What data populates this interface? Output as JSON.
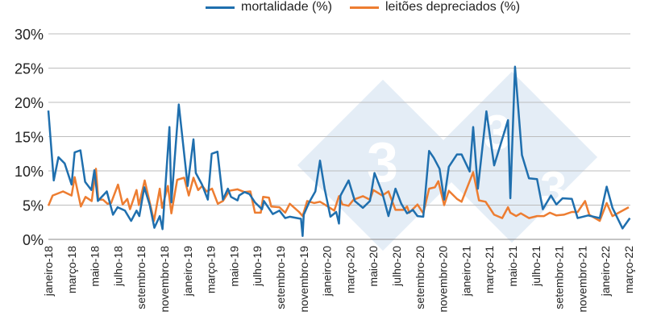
{
  "chart_data": {
    "type": "line",
    "title": "",
    "xlabel": "",
    "ylabel": "",
    "ylim": [
      0,
      30
    ],
    "y_ticks": [
      "0%",
      "5%",
      "10%",
      "15%",
      "20%",
      "25%",
      "30%"
    ],
    "x_range": [
      "2018-01-01",
      "2022-03-01"
    ],
    "x_ticks": [
      {
        "date": "2018-01-01",
        "label": "janeiro-18"
      },
      {
        "date": "2018-03-01",
        "label": "março-18"
      },
      {
        "date": "2018-05-01",
        "label": "maio-18"
      },
      {
        "date": "2018-07-01",
        "label": "julho-18"
      },
      {
        "date": "2018-09-01",
        "label": "setembro-18"
      },
      {
        "date": "2018-11-01",
        "label": "novembro-18"
      },
      {
        "date": "2019-01-01",
        "label": "janeiro-19"
      },
      {
        "date": "2019-03-01",
        "label": "março-19"
      },
      {
        "date": "2019-05-01",
        "label": "maio-19"
      },
      {
        "date": "2019-07-01",
        "label": "julho-19"
      },
      {
        "date": "2019-09-01",
        "label": "setembro-19"
      },
      {
        "date": "2019-11-01",
        "label": "novembro-19"
      },
      {
        "date": "2020-01-01",
        "label": "janeiro-20"
      },
      {
        "date": "2020-03-01",
        "label": "março-20"
      },
      {
        "date": "2020-05-01",
        "label": "maio-20"
      },
      {
        "date": "2020-07-01",
        "label": "julho-20"
      },
      {
        "date": "2020-09-01",
        "label": "setembro-20"
      },
      {
        "date": "2020-11-01",
        "label": "novembro-20"
      },
      {
        "date": "2021-01-01",
        "label": "janeiro-21"
      },
      {
        "date": "2021-03-01",
        "label": "março-21"
      },
      {
        "date": "2021-05-01",
        "label": "maio-21"
      },
      {
        "date": "2021-07-01",
        "label": "julho-21"
      },
      {
        "date": "2021-09-01",
        "label": "setembro-21"
      },
      {
        "date": "2021-11-01",
        "label": "novembro-21"
      },
      {
        "date": "2022-01-01",
        "label": "janeiro-22"
      },
      {
        "date": "2022-03-01",
        "label": "março-22"
      }
    ],
    "grid": "horizontal",
    "legend_position": "top",
    "series": [
      {
        "name": "mortalidade (%)",
        "color": "#1f6fae",
        "points": [
          [
            "2018-01-01",
            18.8
          ],
          [
            "2018-01-15",
            8.6
          ],
          [
            "2018-01-27",
            12.0
          ],
          [
            "2018-02-13",
            11.1
          ],
          [
            "2018-03-01",
            8.0
          ],
          [
            "2018-03-09",
            12.7
          ],
          [
            "2018-03-24",
            13.0
          ],
          [
            "2018-04-06",
            8.4
          ],
          [
            "2018-04-22",
            7.2
          ],
          [
            "2018-04-30",
            10.1
          ],
          [
            "2018-05-09",
            5.6
          ],
          [
            "2018-06-02",
            7.0
          ],
          [
            "2018-06-18",
            3.6
          ],
          [
            "2018-06-30",
            4.7
          ],
          [
            "2018-07-19",
            4.2
          ],
          [
            "2018-08-05",
            2.7
          ],
          [
            "2018-08-19",
            4.2
          ],
          [
            "2018-08-26",
            3.4
          ],
          [
            "2018-09-09",
            7.6
          ],
          [
            "2018-09-23",
            5.0
          ],
          [
            "2018-10-05",
            1.7
          ],
          [
            "2018-10-19",
            3.4
          ],
          [
            "2018-10-26",
            1.5
          ],
          [
            "2018-11-14",
            16.4
          ],
          [
            "2018-11-19",
            5.4
          ],
          [
            "2018-12-08",
            19.7
          ],
          [
            "2019-01-01",
            7.8
          ],
          [
            "2019-01-16",
            14.6
          ],
          [
            "2019-01-22",
            9.7
          ],
          [
            "2019-02-08",
            8.0
          ],
          [
            "2019-02-23",
            5.8
          ],
          [
            "2019-03-03",
            12.5
          ],
          [
            "2019-03-18",
            12.8
          ],
          [
            "2019-04-02",
            5.8
          ],
          [
            "2019-04-15",
            7.4
          ],
          [
            "2019-04-23",
            6.2
          ],
          [
            "2019-05-10",
            5.7
          ],
          [
            "2019-05-14",
            6.4
          ],
          [
            "2019-05-28",
            6.9
          ],
          [
            "2019-06-11",
            6.6
          ],
          [
            "2019-06-25",
            5.4
          ],
          [
            "2019-07-13",
            4.4
          ],
          [
            "2019-07-18",
            5.6
          ],
          [
            "2019-08-11",
            3.7
          ],
          [
            "2019-08-28",
            4.2
          ],
          [
            "2019-09-13",
            3.1
          ],
          [
            "2019-09-25",
            3.3
          ],
          [
            "2019-10-24",
            3.0
          ],
          [
            "2019-10-28",
            0.5
          ],
          [
            "2019-11-01",
            3.6
          ],
          [
            "2019-11-15",
            5.4
          ],
          [
            "2019-12-01",
            7.0
          ],
          [
            "2019-12-13",
            11.5
          ],
          [
            "2019-12-25",
            7.4
          ],
          [
            "2020-01-10",
            3.3
          ],
          [
            "2020-01-25",
            4.0
          ],
          [
            "2020-02-02",
            2.3
          ],
          [
            "2020-02-06",
            6.4
          ],
          [
            "2020-02-27",
            8.6
          ],
          [
            "2020-03-13",
            5.6
          ],
          [
            "2020-04-04",
            4.6
          ],
          [
            "2020-04-22",
            5.6
          ],
          [
            "2020-05-04",
            9.7
          ],
          [
            "2020-05-24",
            6.8
          ],
          [
            "2020-06-10",
            3.4
          ],
          [
            "2020-06-28",
            7.4
          ],
          [
            "2020-07-13",
            5.2
          ],
          [
            "2020-07-28",
            3.8
          ],
          [
            "2020-08-13",
            4.3
          ],
          [
            "2020-08-25",
            3.4
          ],
          [
            "2020-09-10",
            3.3
          ],
          [
            "2020-09-25",
            12.9
          ],
          [
            "2020-10-07",
            11.9
          ],
          [
            "2020-10-22",
            10.3
          ],
          [
            "2020-11-04",
            5.8
          ],
          [
            "2020-11-16",
            10.6
          ],
          [
            "2020-12-07",
            12.4
          ],
          [
            "2020-12-19",
            12.4
          ],
          [
            "2021-01-10",
            9.9
          ],
          [
            "2021-01-19",
            16.4
          ],
          [
            "2021-02-01",
            7.4
          ],
          [
            "2021-02-23",
            18.7
          ],
          [
            "2021-03-13",
            10.8
          ],
          [
            "2021-04-19",
            17.4
          ],
          [
            "2021-04-25",
            6.0
          ],
          [
            "2021-05-07",
            25.2
          ],
          [
            "2021-05-25",
            12.3
          ],
          [
            "2021-06-13",
            8.9
          ],
          [
            "2021-07-04",
            8.8
          ],
          [
            "2021-07-19",
            4.4
          ],
          [
            "2021-08-10",
            6.4
          ],
          [
            "2021-08-24",
            5.1
          ],
          [
            "2021-09-10",
            6.0
          ],
          [
            "2021-10-04",
            5.9
          ],
          [
            "2021-10-19",
            3.1
          ],
          [
            "2021-11-16",
            3.5
          ],
          [
            "2021-12-16",
            3.1
          ],
          [
            "2022-01-04",
            7.7
          ],
          [
            "2022-01-19",
            4.6
          ],
          [
            "2022-02-15",
            1.6
          ],
          [
            "2022-03-04",
            3.1
          ]
        ]
      },
      {
        "name": "leitões depreciados (%)",
        "color": "#ed7d31",
        "points": [
          [
            "2018-01-01",
            4.9
          ],
          [
            "2018-01-12",
            6.4
          ],
          [
            "2018-02-09",
            7.0
          ],
          [
            "2018-03-01",
            6.4
          ],
          [
            "2018-03-09",
            9.1
          ],
          [
            "2018-03-25",
            4.8
          ],
          [
            "2018-04-07",
            6.2
          ],
          [
            "2018-04-23",
            5.6
          ],
          [
            "2018-05-04",
            10.3
          ],
          [
            "2018-05-10",
            5.8
          ],
          [
            "2018-05-22",
            5.8
          ],
          [
            "2018-06-04",
            5.2
          ],
          [
            "2018-06-13",
            5.3
          ],
          [
            "2018-07-01",
            8.0
          ],
          [
            "2018-07-13",
            5.1
          ],
          [
            "2018-07-25",
            5.9
          ],
          [
            "2018-08-02",
            4.4
          ],
          [
            "2018-08-19",
            7.2
          ],
          [
            "2018-08-25",
            5.0
          ],
          [
            "2018-09-10",
            8.6
          ],
          [
            "2018-10-04",
            2.7
          ],
          [
            "2018-10-19",
            7.4
          ],
          [
            "2018-10-25",
            4.6
          ],
          [
            "2018-11-10",
            7.8
          ],
          [
            "2018-11-19",
            3.8
          ],
          [
            "2018-12-04",
            8.7
          ],
          [
            "2018-12-22",
            9.0
          ],
          [
            "2019-01-04",
            6.4
          ],
          [
            "2019-01-16",
            9.0
          ],
          [
            "2019-01-28",
            7.2
          ],
          [
            "2019-02-09",
            7.8
          ],
          [
            "2019-02-20",
            7.0
          ],
          [
            "2019-03-04",
            7.4
          ],
          [
            "2019-03-19",
            5.2
          ],
          [
            "2019-04-02",
            5.6
          ],
          [
            "2019-04-19",
            7.1
          ],
          [
            "2019-05-10",
            7.3
          ],
          [
            "2019-05-28",
            6.9
          ],
          [
            "2019-06-13",
            7.0
          ],
          [
            "2019-06-25",
            3.9
          ],
          [
            "2019-07-10",
            3.9
          ],
          [
            "2019-07-16",
            6.2
          ],
          [
            "2019-08-01",
            6.1
          ],
          [
            "2019-08-07",
            4.8
          ],
          [
            "2019-08-28",
            4.7
          ],
          [
            "2019-09-13",
            3.9
          ],
          [
            "2019-09-25",
            5.2
          ],
          [
            "2019-10-19",
            4.0
          ],
          [
            "2019-10-28",
            3.4
          ],
          [
            "2019-11-10",
            5.6
          ],
          [
            "2019-11-28",
            5.3
          ],
          [
            "2019-12-13",
            5.5
          ],
          [
            "2019-12-19",
            5.3
          ],
          [
            "2020-01-20",
            4.2
          ],
          [
            "2020-02-02",
            6.3
          ],
          [
            "2020-02-11",
            5.1
          ],
          [
            "2020-02-27",
            4.9
          ],
          [
            "2020-03-10",
            5.8
          ],
          [
            "2020-04-04",
            6.3
          ],
          [
            "2020-04-22",
            5.8
          ],
          [
            "2020-05-01",
            7.2
          ],
          [
            "2020-05-24",
            6.4
          ],
          [
            "2020-06-10",
            7.0
          ],
          [
            "2020-06-28",
            4.3
          ],
          [
            "2020-07-19",
            4.3
          ],
          [
            "2020-07-28",
            4.8
          ],
          [
            "2020-08-04",
            3.9
          ],
          [
            "2020-08-25",
            5.1
          ],
          [
            "2020-09-10",
            3.8
          ],
          [
            "2020-09-25",
            7.4
          ],
          [
            "2020-10-10",
            7.6
          ],
          [
            "2020-10-19",
            8.5
          ],
          [
            "2020-11-04",
            5.0
          ],
          [
            "2020-11-16",
            7.1
          ],
          [
            "2020-12-07",
            5.9
          ],
          [
            "2020-12-19",
            5.5
          ],
          [
            "2021-01-19",
            9.8
          ],
          [
            "2021-02-04",
            5.7
          ],
          [
            "2021-02-21",
            5.5
          ],
          [
            "2021-03-13",
            3.6
          ],
          [
            "2021-04-04",
            3.1
          ],
          [
            "2021-04-19",
            4.7
          ],
          [
            "2021-04-25",
            3.9
          ],
          [
            "2021-05-10",
            3.4
          ],
          [
            "2021-05-22",
            3.8
          ],
          [
            "2021-06-13",
            3.1
          ],
          [
            "2021-07-04",
            3.4
          ],
          [
            "2021-07-22",
            3.4
          ],
          [
            "2021-08-07",
            3.9
          ],
          [
            "2021-08-24",
            3.5
          ],
          [
            "2021-09-13",
            3.6
          ],
          [
            "2021-10-04",
            4.0
          ],
          [
            "2021-10-19",
            4.0
          ],
          [
            "2021-11-08",
            5.6
          ],
          [
            "2021-11-19",
            3.6
          ],
          [
            "2021-12-16",
            2.7
          ],
          [
            "2022-01-04",
            5.3
          ],
          [
            "2022-01-19",
            3.4
          ],
          [
            "2022-03-01",
            4.7
          ]
        ]
      }
    ]
  }
}
